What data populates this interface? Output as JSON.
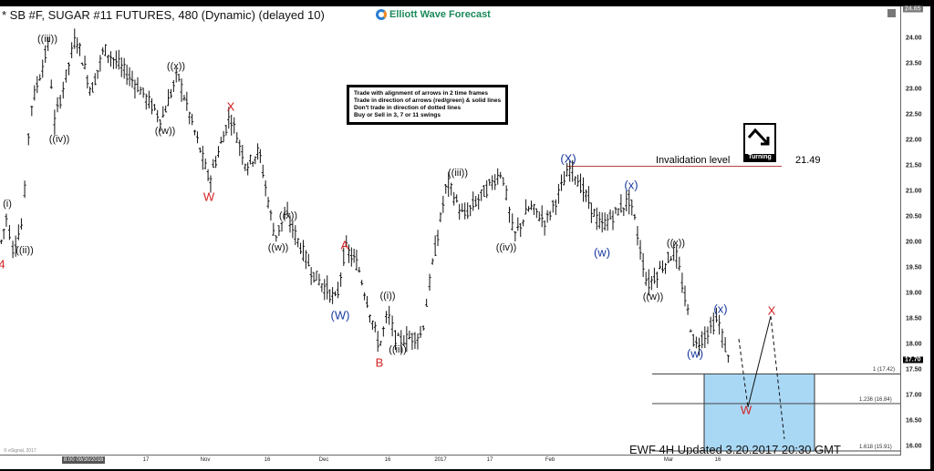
{
  "title": "* SB #F, SUGAR #11 FUTURES, 480 (Dynamic) (delayed 10)",
  "logo_text": "Elliott Wave Forecast",
  "rules": [
    "Trade with alignment of arrows in 2 time frames",
    "Trade in direction of arrows (red/green) & solid lines",
    "Don't trade in direction of dotted lines",
    "Buy or Sell in 3, 7 or 11 swings"
  ],
  "turning_label": "Turning",
  "invalidation": {
    "label": "Invalidation level",
    "value": "21.49"
  },
  "footer": {
    "updated": "EWF 4H Updated 3.20.2017 20:30 GMT",
    "copyright": "© eSignal, 2017"
  },
  "colors": {
    "red": "#d42020",
    "blue": "#1a3aa0",
    "black": "#111111",
    "target_box": "#a9d8f5",
    "invalidation_line": "#c04040"
  },
  "chart_data": {
    "type": "ohlc-bar",
    "ylim": [
      15.85,
      24.65
    ],
    "y_ticks": [
      "24.00",
      "23.50",
      "23.00",
      "22.50",
      "22.00",
      "21.50",
      "21.00",
      "20.50",
      "20.00",
      "19.50",
      "19.00",
      "18.50",
      "18.00",
      "17.50",
      "17.00",
      "16.50",
      "16.00"
    ],
    "y_top_badge": "24.65",
    "last_price": "17.70",
    "x_start_label": "8:00 09/30/2016",
    "x_ticks": [
      "17",
      "Nov",
      "16",
      "Dec",
      "16",
      "2017",
      "17",
      "Feb",
      "Mar",
      "16"
    ],
    "swing_points": [
      {
        "date": "2016-09-06",
        "price": 19.9
      },
      {
        "date": "2016-09-08",
        "price": 20.6
      },
      {
        "date": "2016-09-09",
        "price": 19.8
      },
      {
        "date": "2016-09-12",
        "price": 20.4
      },
      {
        "date": "2016-09-13",
        "price": 21.6
      },
      {
        "date": "2016-09-14",
        "price": 22.6
      },
      {
        "date": "2016-09-19",
        "price": 23.95
      },
      {
        "date": "2016-09-20",
        "price": 22.25
      },
      {
        "date": "2016-09-26",
        "price": 24.05
      },
      {
        "date": "2016-09-30",
        "price": 22.95
      },
      {
        "date": "2016-10-04",
        "price": 23.8
      },
      {
        "date": "2016-10-14",
        "price": 23.1
      },
      {
        "date": "2016-10-21",
        "price": 22.4
      },
      {
        "date": "2016-10-25",
        "price": 23.3
      },
      {
        "date": "2016-11-02",
        "price": 21.2
      },
      {
        "date": "2016-11-07",
        "price": 22.5
      },
      {
        "date": "2016-11-11",
        "price": 21.5
      },
      {
        "date": "2016-11-14",
        "price": 21.8
      },
      {
        "date": "2016-11-18",
        "price": 20.1
      },
      {
        "date": "2016-11-21",
        "price": 20.55
      },
      {
        "date": "2016-11-28",
        "price": 19.4
      },
      {
        "date": "2016-12-04",
        "price": 18.85
      },
      {
        "date": "2016-12-06",
        "price": 19.9
      },
      {
        "date": "2016-12-09",
        "price": 19.55
      },
      {
        "date": "2016-12-14",
        "price": 17.95
      },
      {
        "date": "2016-12-16",
        "price": 18.6
      },
      {
        "date": "2016-12-19",
        "price": 18.05
      },
      {
        "date": "2016-12-27",
        "price": 18.2
      },
      {
        "date": "2016-12-30",
        "price": 19.4
      },
      {
        "date": "2017-01-04",
        "price": 21.2
      },
      {
        "date": "2017-01-09",
        "price": 20.5
      },
      {
        "date": "2017-01-20",
        "price": 21.4
      },
      {
        "date": "2017-01-23",
        "price": 20.1
      },
      {
        "date": "2017-01-27",
        "price": 20.7
      },
      {
        "date": "2017-01-31",
        "price": 20.4
      },
      {
        "date": "2017-02-06",
        "price": 21.5
      },
      {
        "date": "2017-02-13",
        "price": 20.3
      },
      {
        "date": "2017-02-20",
        "price": 20.85
      },
      {
        "date": "2017-02-24",
        "price": 19.15
      },
      {
        "date": "2017-03-03",
        "price": 19.85
      },
      {
        "date": "2017-03-09",
        "price": 17.95
      },
      {
        "date": "2017-03-16",
        "price": 18.5
      },
      {
        "date": "2017-03-20",
        "price": 17.6
      }
    ],
    "fib_levels": [
      {
        "label": "1 (17.42)",
        "price": 17.42
      },
      {
        "label": "1.236 (16.84)",
        "price": 16.84
      },
      {
        "label": "1.618 (15.91)",
        "price": 15.91
      }
    ],
    "target_zone": [
      15.91,
      17.42
    ],
    "invalidation_price": 21.49,
    "wave_labels": [
      {
        "text": "(i)",
        "color": "black"
      },
      {
        "text": "((ii))",
        "color": "black"
      },
      {
        "text": "4",
        "color": "red"
      },
      {
        "text": "((iii))",
        "color": "black"
      },
      {
        "text": "((iv))",
        "color": "black"
      },
      {
        "text": "((x))",
        "color": "black"
      },
      {
        "text": "((w))",
        "color": "black"
      },
      {
        "text": "X",
        "color": "red"
      },
      {
        "text": "W",
        "color": "red"
      },
      {
        "text": "((x))",
        "color": "black"
      },
      {
        "text": "((w))",
        "color": "black"
      },
      {
        "text": "A",
        "color": "red"
      },
      {
        "text": "(W)",
        "color": "blue"
      },
      {
        "text": "((i))",
        "color": "black"
      },
      {
        "text": "((ii))",
        "color": "black"
      },
      {
        "text": "B",
        "color": "red"
      },
      {
        "text": "((iii))",
        "color": "black"
      },
      {
        "text": "((iv))",
        "color": "black"
      },
      {
        "text": "(X)",
        "color": "blue"
      },
      {
        "text": "(x)",
        "color": "blue"
      },
      {
        "text": "(w)",
        "color": "blue"
      },
      {
        "text": "((x))",
        "color": "black"
      },
      {
        "text": "((w))",
        "color": "black"
      },
      {
        "text": "(x)",
        "color": "blue"
      },
      {
        "text": "(w)",
        "color": "blue"
      },
      {
        "text": "X",
        "color": "red"
      },
      {
        "text": "W",
        "color": "red"
      }
    ]
  }
}
